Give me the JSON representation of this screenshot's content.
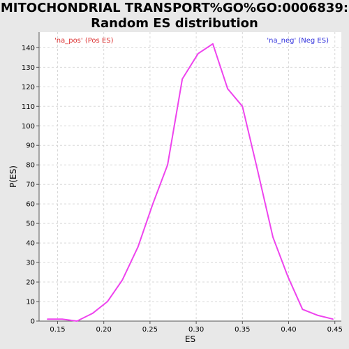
{
  "title_lines": [
    "MITOCHONDRIAL TRANSPORT%GO%GO:0006839:",
    "Random ES distribution"
  ],
  "colors": {
    "background": "#e8e8e8",
    "plot_background": "#ffffff",
    "curve": "#ee44ee",
    "grid": "#d8d8d8",
    "pos_legend": "#dd3333",
    "neg_legend": "#3333dd"
  },
  "chart_data": {
    "type": "line",
    "title": "MITOCHONDRIAL TRANSPORT%GO%GO:0006839: Random ES distribution",
    "xlabel": "ES",
    "ylabel": "P(ES)",
    "xlim": [
      0.13,
      0.457
    ],
    "ylim": [
      0,
      148
    ],
    "x_ticks": [
      "0.15",
      "0.20",
      "0.25",
      "0.30",
      "0.35",
      "0.40",
      "0.45"
    ],
    "y_ticks": [
      "0",
      "10",
      "20",
      "30",
      "40",
      "50",
      "60",
      "70",
      "80",
      "90",
      "100",
      "110",
      "120",
      "130",
      "140"
    ],
    "grid": true,
    "legend": [
      {
        "label": "'na_pos' (Pos ES)",
        "position": "top-left"
      },
      {
        "label": "'na_neg' (Neg ES)",
        "position": "top-right"
      }
    ],
    "series": [
      {
        "x": [
          0.139,
          0.155,
          0.171,
          0.188,
          0.204,
          0.22,
          0.237,
          0.253,
          0.269,
          0.285,
          0.302,
          0.318,
          0.334,
          0.35,
          0.366,
          0.383,
          0.399,
          0.415,
          0.431,
          0.448
        ],
        "y": [
          1,
          1,
          0,
          4,
          10,
          21,
          38,
          60,
          80,
          124,
          137,
          142,
          119,
          110,
          78,
          43,
          23,
          6,
          3,
          1
        ]
      }
    ]
  }
}
